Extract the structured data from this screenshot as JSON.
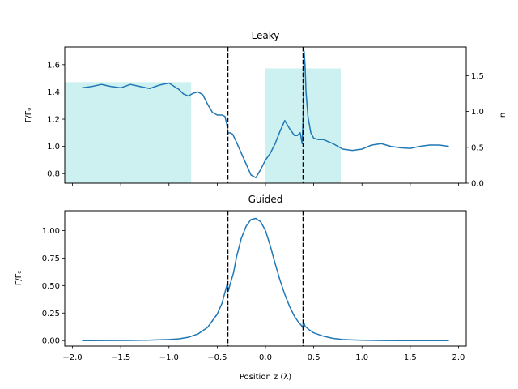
{
  "chart_data": [
    {
      "type": "line",
      "title": "Leaky",
      "ylabel": "Γ/Γ₀",
      "ylabel_right": "n",
      "xlim": [
        -2.08,
        2.08
      ],
      "ylim": [
        0.73,
        1.73
      ],
      "ylim_right": [
        0.0,
        1.9
      ],
      "xticks": [
        -2.0,
        -1.5,
        -1.0,
        -0.5,
        0.0,
        0.5,
        1.0,
        1.5,
        2.0
      ],
      "xtick_labels_shown": false,
      "yticks": [
        0.8,
        1.0,
        1.2,
        1.4,
        1.6
      ],
      "ytick_labels": [
        "0.8",
        "1.0",
        "1.2",
        "1.4",
        "1.6"
      ],
      "yticks_right": [
        0.0,
        0.5,
        1.0,
        1.5
      ],
      "ytick_labels_right": [
        "0.0",
        "0.5",
        "1.0",
        "1.5"
      ],
      "series": [
        {
          "color": "#1f77b4",
          "x": [
            -1.9,
            -1.8,
            -1.7,
            -1.6,
            -1.5,
            -1.4,
            -1.3,
            -1.2,
            -1.1,
            -1.0,
            -0.9,
            -0.85,
            -0.8,
            -0.75,
            -0.7,
            -0.65,
            -0.6,
            -0.55,
            -0.5,
            -0.45,
            -0.42,
            -0.4,
            -0.39,
            -0.37,
            -0.34,
            -0.3,
            -0.25,
            -0.2,
            -0.15,
            -0.1,
            -0.05,
            0.0,
            0.05,
            0.1,
            0.15,
            0.2,
            0.25,
            0.28,
            0.3,
            0.33,
            0.36,
            0.38,
            0.39,
            0.4,
            0.41,
            0.42,
            0.44,
            0.47,
            0.5,
            0.55,
            0.6,
            0.7,
            0.8,
            0.9,
            1.0,
            1.1,
            1.2,
            1.3,
            1.4,
            1.5,
            1.6,
            1.7,
            1.8,
            1.9
          ],
          "y": [
            1.43,
            1.44,
            1.455,
            1.44,
            1.43,
            1.455,
            1.44,
            1.425,
            1.45,
            1.465,
            1.42,
            1.385,
            1.37,
            1.39,
            1.4,
            1.38,
            1.31,
            1.25,
            1.23,
            1.23,
            1.22,
            1.16,
            1.1,
            1.1,
            1.09,
            1.03,
            0.95,
            0.87,
            0.79,
            0.77,
            0.83,
            0.9,
            0.95,
            1.02,
            1.11,
            1.19,
            1.13,
            1.1,
            1.08,
            1.08,
            1.1,
            1.02,
            1.2,
            1.7,
            1.6,
            1.4,
            1.22,
            1.1,
            1.06,
            1.05,
            1.05,
            1.02,
            0.98,
            0.97,
            0.98,
            1.01,
            1.02,
            1.0,
            0.99,
            0.985,
            1.0,
            1.01,
            1.01,
            1.0
          ]
        }
      ],
      "shaded_regions": [
        {
          "x0": -2.08,
          "x1": -0.77,
          "n": 1.41,
          "color": "#cdf1f1"
        },
        {
          "x0": 0.0,
          "x1": 0.78,
          "n": 1.6,
          "color": "#cdf1f1"
        }
      ],
      "vlines": [
        -0.39,
        0.39
      ],
      "grid": false
    },
    {
      "type": "line",
      "title": "Guided",
      "ylabel": "Γ/Γ₀",
      "xlabel": "Position z (λ)",
      "xlim": [
        -2.08,
        2.08
      ],
      "ylim": [
        -0.05,
        1.18
      ],
      "xticks": [
        -2.0,
        -1.5,
        -1.0,
        -0.5,
        0.0,
        0.5,
        1.0,
        1.5,
        2.0
      ],
      "xtick_labels": [
        "−2.0",
        "−1.5",
        "−1.0",
        "−0.5",
        "0.0",
        "0.5",
        "1.0",
        "1.5",
        "2.0"
      ],
      "yticks": [
        0.0,
        0.25,
        0.5,
        0.75,
        1.0
      ],
      "ytick_labels": [
        "0.00",
        "0.25",
        "0.50",
        "0.75",
        "1.00"
      ],
      "series": [
        {
          "color": "#1f77b4",
          "x": [
            -1.9,
            -1.8,
            -1.6,
            -1.4,
            -1.2,
            -1.0,
            -0.9,
            -0.8,
            -0.7,
            -0.6,
            -0.5,
            -0.45,
            -0.41,
            -0.395,
            -0.385,
            -0.37,
            -0.33,
            -0.3,
            -0.25,
            -0.2,
            -0.15,
            -0.1,
            -0.05,
            0.0,
            0.05,
            0.1,
            0.15,
            0.2,
            0.25,
            0.3,
            0.34,
            0.37,
            0.385,
            0.395,
            0.41,
            0.45,
            0.5,
            0.6,
            0.7,
            0.8,
            0.9,
            1.0,
            1.2,
            1.4,
            1.6,
            1.8,
            1.9
          ],
          "y": [
            0.0,
            0.0,
            0.001,
            0.002,
            0.004,
            0.01,
            0.015,
            0.03,
            0.06,
            0.12,
            0.24,
            0.34,
            0.47,
            0.52,
            0.45,
            0.5,
            0.62,
            0.76,
            0.93,
            1.04,
            1.1,
            1.11,
            1.08,
            1.0,
            0.86,
            0.7,
            0.55,
            0.42,
            0.31,
            0.22,
            0.17,
            0.14,
            0.12,
            0.17,
            0.13,
            0.1,
            0.07,
            0.04,
            0.02,
            0.01,
            0.006,
            0.003,
            0.001,
            0.0,
            0.0,
            0.0,
            0.0
          ]
        }
      ],
      "vlines": [
        -0.39,
        0.39
      ],
      "grid": false
    }
  ]
}
